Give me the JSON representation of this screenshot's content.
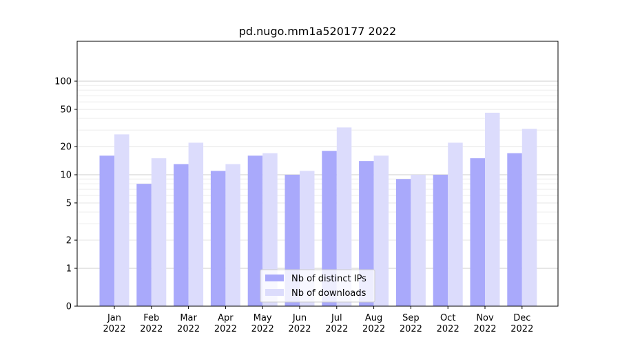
{
  "chart_data": {
    "type": "bar",
    "title": "pd.nugo.mm1a520177 2022",
    "xlabel": "",
    "ylabel": "",
    "y_scale": "symlog",
    "ylim": [
      0,
      120
    ],
    "y_ticks": [
      0,
      1,
      2,
      5,
      10,
      20,
      50,
      100
    ],
    "grid": true,
    "legend_position": "bottom-center",
    "categories": [
      [
        "Jan",
        "2022"
      ],
      [
        "Feb",
        "2022"
      ],
      [
        "Mar",
        "2022"
      ],
      [
        "Apr",
        "2022"
      ],
      [
        "May",
        "2022"
      ],
      [
        "Jun",
        "2022"
      ],
      [
        "Jul",
        "2022"
      ],
      [
        "Aug",
        "2022"
      ],
      [
        "Sep",
        "2022"
      ],
      [
        "Oct",
        "2022"
      ],
      [
        "Nov",
        "2022"
      ],
      [
        "Dec",
        "2022"
      ]
    ],
    "series": [
      {
        "name": "Nb of distinct IPs",
        "color": "#a9a9fb",
        "values": [
          16,
          8,
          13,
          11,
          16,
          10,
          18,
          14,
          9,
          10,
          15,
          17
        ]
      },
      {
        "name": "Nb of downloads",
        "color": "#dcdcfc",
        "values": [
          27,
          15,
          22,
          13,
          17,
          11,
          32,
          16,
          10,
          22,
          46,
          31
        ]
      }
    ]
  }
}
